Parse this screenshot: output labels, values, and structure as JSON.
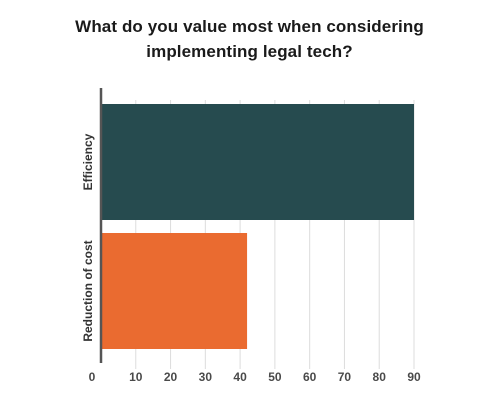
{
  "chart_data": {
    "type": "bar",
    "orientation": "horizontal",
    "title_lines": [
      "What do you value most when considering",
      "implementing legal tech?"
    ],
    "categories": [
      "Efficiency",
      "Reduction of cost"
    ],
    "values": [
      90,
      42
    ],
    "colors": [
      "#264b4f",
      "#ea6b30"
    ],
    "xlim": [
      0,
      90
    ],
    "xticks": [
      0,
      10,
      20,
      30,
      40,
      50,
      60,
      70,
      80,
      90
    ],
    "grid": true,
    "legend": "none"
  }
}
